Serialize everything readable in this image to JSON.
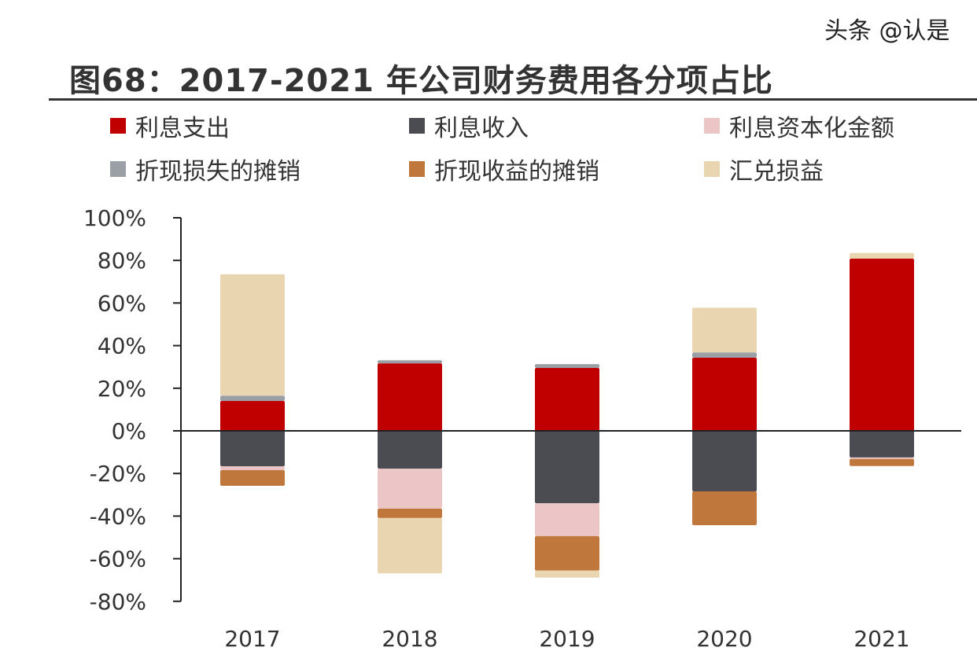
{
  "chart_data": {
    "type": "bar",
    "stacked": true,
    "title": "图68：2017-2021 年公司财务费用各分项占比",
    "categories": [
      "2017",
      "2018",
      "2019",
      "2020",
      "2021"
    ],
    "ylim": [
      -80,
      100
    ],
    "yticks": [
      "100%",
      "80%",
      "60%",
      "40%",
      "20%",
      "0%",
      "-20%",
      "-40%",
      "-60%",
      "-80%"
    ],
    "ytick_values": [
      100,
      80,
      60,
      40,
      20,
      0,
      -20,
      -40,
      -60,
      -80
    ],
    "grid": false,
    "legend_position": "top",
    "series": [
      {
        "name": "利息支出",
        "color": "#c00000",
        "values": [
          14,
          31.7,
          29.5,
          34.3,
          80.8
        ]
      },
      {
        "name": "利息收入",
        "color": "#4a4c51",
        "values": [
          -16.6,
          -17.7,
          -34,
          -28.4,
          -12.5
        ]
      },
      {
        "name": "利息资本化金额",
        "color": "#ecc6c6",
        "values": [
          -1.8,
          -18.8,
          -15.4,
          0,
          -0.7
        ]
      },
      {
        "name": "折现损失的摊销",
        "color": "#9aa0a6",
        "values": [
          2.5,
          1.4,
          1.8,
          2.5,
          0
        ]
      },
      {
        "name": "折现收益的摊销",
        "color": "#c0773c",
        "values": [
          -7.4,
          -4.4,
          -16.2,
          -15.9,
          -3.3
        ]
      },
      {
        "name": "汇兑损益",
        "color": "#e9d5b0",
        "values": [
          57,
          -26,
          -3.3,
          21,
          2.7
        ]
      }
    ]
  },
  "watermark": "头条 @认是"
}
